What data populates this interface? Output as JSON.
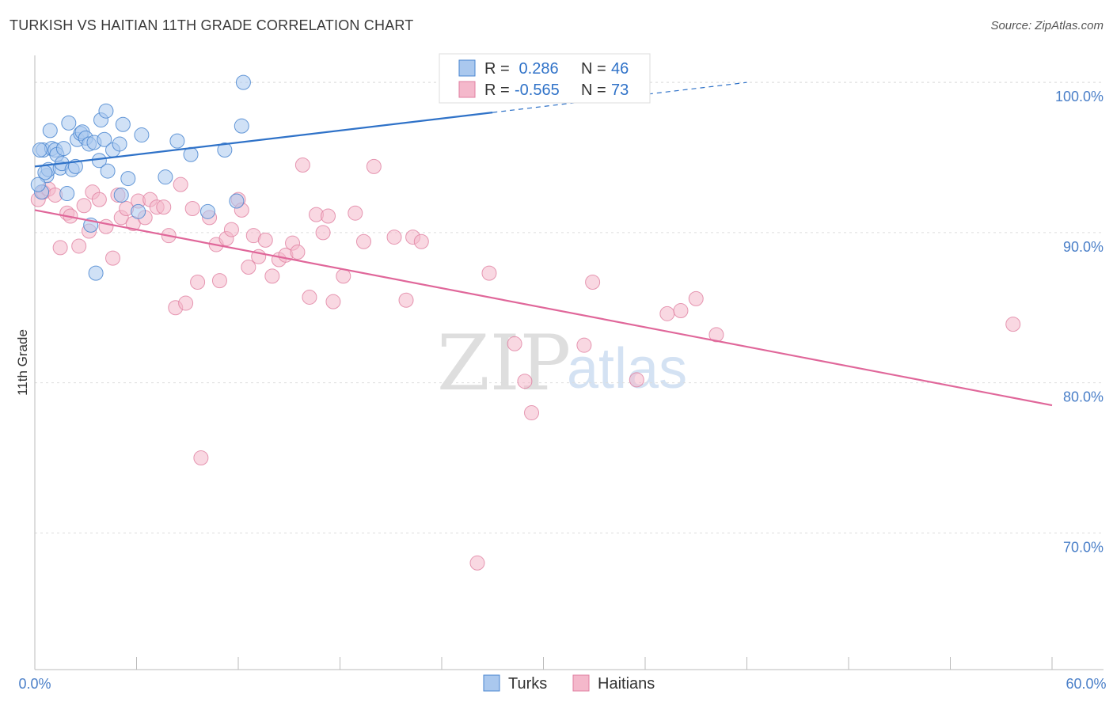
{
  "title": "TURKISH VS HAITIAN 11TH GRADE CORRELATION CHART",
  "source": "Source: ZipAtlas.com",
  "watermark": {
    "zip": "ZIP",
    "atlas": "atlas"
  },
  "legend_box": {
    "row1": {
      "r_label": "R =",
      "r_value": " 0.286",
      "n_label": "N =",
      "n_value": "46"
    },
    "row2": {
      "r_label": "R =",
      "r_value": "-0.565",
      "n_label": "N =",
      "n_value": "73"
    }
  },
  "bottom_legend": {
    "turks": "Turks",
    "haitians": "Haitians"
  },
  "colors": {
    "blue_fill": "#aac8ee",
    "blue_stroke": "#4a86d0",
    "blue_line": "#2f72c8",
    "pink_fill": "#f4b8cb",
    "pink_stroke": "#e07fa0",
    "pink_line": "#e0679a",
    "tick_text": "#4a7fc8",
    "grid": "#dddddd"
  },
  "chart_data": {
    "type": "scatter",
    "title": "TURKISH VS HAITIAN 11TH GRADE CORRELATION CHART",
    "xlabel": "",
    "ylabel": "11th Grade",
    "xlim": [
      0,
      60
    ],
    "ylim": [
      60.9,
      101.8
    ],
    "x_tick_labels": [
      "0.0%",
      "60.0%"
    ],
    "y_ticks": [
      70,
      80,
      90,
      100
    ],
    "y_tick_labels": [
      "70.0%",
      "80.0%",
      "90.0%",
      "100.0%"
    ],
    "series": [
      {
        "name": "Turks",
        "R": 0.286,
        "N": 46,
        "trend": {
          "x0": 0,
          "y0": 94.4,
          "x1": 42,
          "y1": 100.0,
          "solid_until_x": 27
        },
        "points": [
          [
            0.5,
            95.5
          ],
          [
            0.7,
            93.8
          ],
          [
            0.8,
            94.2
          ],
          [
            0.9,
            96.8
          ],
          [
            1.0,
            95.6
          ],
          [
            1.2,
            95.5
          ],
          [
            1.3,
            95.2
          ],
          [
            1.5,
            94.3
          ],
          [
            1.6,
            94.6
          ],
          [
            1.7,
            95.6
          ],
          [
            1.9,
            92.6
          ],
          [
            2.0,
            97.3
          ],
          [
            2.2,
            94.2
          ],
          [
            2.4,
            94.4
          ],
          [
            2.5,
            96.2
          ],
          [
            2.7,
            96.6
          ],
          [
            2.8,
            96.7
          ],
          [
            3.0,
            96.3
          ],
          [
            3.2,
            95.9
          ],
          [
            3.3,
            90.5
          ],
          [
            3.5,
            96.0
          ],
          [
            3.6,
            87.3
          ],
          [
            3.8,
            94.8
          ],
          [
            3.9,
            97.5
          ],
          [
            4.1,
            96.2
          ],
          [
            4.3,
            94.1
          ],
          [
            4.2,
            98.1
          ],
          [
            4.6,
            95.5
          ],
          [
            5.0,
            95.9
          ],
          [
            5.2,
            97.2
          ],
          [
            5.1,
            92.5
          ],
          [
            5.5,
            93.6
          ],
          [
            6.1,
            91.4
          ],
          [
            6.3,
            96.5
          ],
          [
            7.7,
            93.7
          ],
          [
            8.4,
            96.1
          ],
          [
            9.2,
            95.2
          ],
          [
            10.2,
            91.4
          ],
          [
            11.2,
            95.5
          ],
          [
            11.9,
            92.1
          ],
          [
            12.2,
            97.1
          ],
          [
            12.3,
            100.0
          ],
          [
            0.3,
            95.5
          ],
          [
            0.4,
            92.7
          ],
          [
            0.6,
            94.0
          ],
          [
            0.2,
            93.2
          ]
        ]
      },
      {
        "name": "Haitians",
        "R": -0.565,
        "N": 73,
        "trend": {
          "x0": 0,
          "y0": 91.5,
          "x1": 60,
          "y1": 78.5
        },
        "points": [
          [
            0.2,
            92.2
          ],
          [
            0.5,
            92.7
          ],
          [
            0.8,
            92.9
          ],
          [
            1.2,
            92.5
          ],
          [
            1.5,
            89.0
          ],
          [
            1.9,
            91.3
          ],
          [
            2.1,
            91.1
          ],
          [
            2.6,
            89.1
          ],
          [
            2.9,
            91.8
          ],
          [
            3.2,
            90.1
          ],
          [
            3.4,
            92.7
          ],
          [
            3.8,
            92.2
          ],
          [
            4.2,
            90.4
          ],
          [
            4.6,
            88.3
          ],
          [
            4.9,
            92.5
          ],
          [
            5.1,
            91.0
          ],
          [
            5.4,
            91.6
          ],
          [
            5.8,
            90.6
          ],
          [
            6.1,
            92.1
          ],
          [
            6.5,
            91.0
          ],
          [
            6.8,
            92.2
          ],
          [
            7.2,
            91.7
          ],
          [
            7.6,
            91.7
          ],
          [
            7.9,
            89.8
          ],
          [
            8.3,
            85.0
          ],
          [
            8.6,
            93.2
          ],
          [
            8.9,
            85.3
          ],
          [
            9.3,
            91.6
          ],
          [
            9.6,
            86.7
          ],
          [
            9.8,
            75.0
          ],
          [
            10.3,
            91.0
          ],
          [
            10.7,
            89.2
          ],
          [
            10.9,
            86.8
          ],
          [
            11.3,
            89.6
          ],
          [
            11.6,
            90.2
          ],
          [
            12.0,
            92.2
          ],
          [
            12.2,
            91.5
          ],
          [
            12.6,
            87.7
          ],
          [
            12.9,
            89.8
          ],
          [
            13.2,
            88.4
          ],
          [
            13.6,
            89.5
          ],
          [
            14.0,
            87.1
          ],
          [
            14.4,
            88.2
          ],
          [
            14.8,
            88.5
          ],
          [
            15.2,
            89.3
          ],
          [
            15.5,
            88.7
          ],
          [
            15.8,
            94.5
          ],
          [
            16.2,
            85.7
          ],
          [
            16.6,
            91.2
          ],
          [
            17.0,
            90.0
          ],
          [
            17.3,
            91.1
          ],
          [
            17.6,
            85.4
          ],
          [
            18.2,
            87.1
          ],
          [
            18.9,
            91.3
          ],
          [
            19.4,
            89.4
          ],
          [
            20.0,
            94.4
          ],
          [
            21.2,
            89.7
          ],
          [
            21.9,
            85.5
          ],
          [
            22.3,
            89.7
          ],
          [
            22.8,
            89.4
          ],
          [
            26.1,
            68.0
          ],
          [
            26.8,
            87.3
          ],
          [
            28.3,
            82.6
          ],
          [
            28.9,
            80.1
          ],
          [
            29.3,
            78.0
          ],
          [
            32.4,
            82.5
          ],
          [
            32.9,
            86.7
          ],
          [
            35.5,
            80.2
          ],
          [
            37.3,
            84.6
          ],
          [
            38.1,
            84.8
          ],
          [
            39.0,
            85.6
          ],
          [
            40.2,
            83.2
          ],
          [
            57.7,
            83.9
          ]
        ]
      }
    ]
  }
}
